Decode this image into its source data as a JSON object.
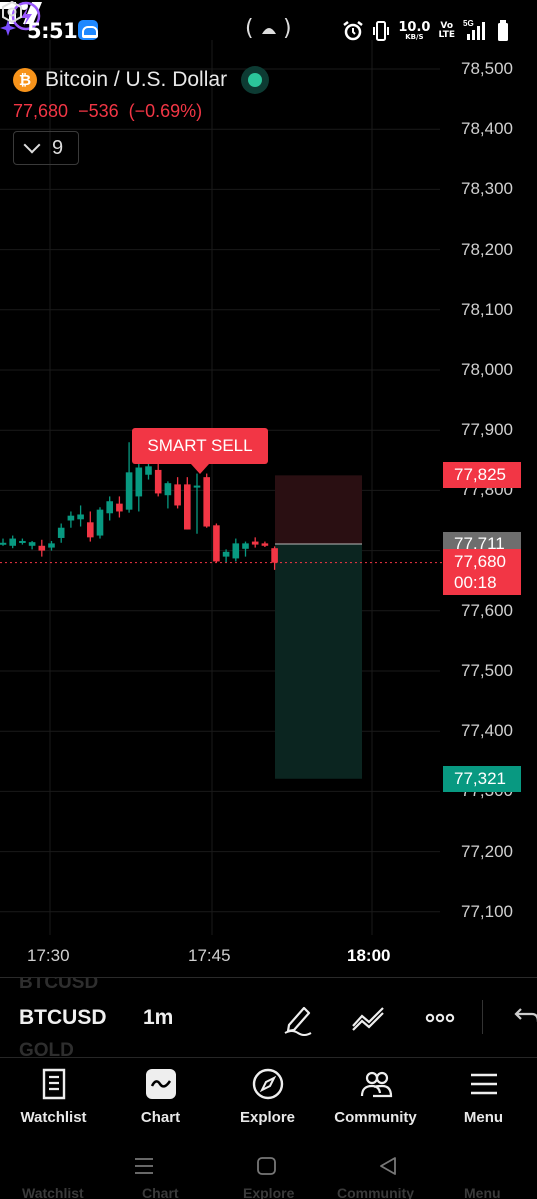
{
  "status_bar": {
    "time": "5:51",
    "speed_value": "10.0",
    "speed_unit": "KB/S",
    "volte_top": "Vo",
    "volte_bottom": "LTE",
    "network": "5G"
  },
  "header": {
    "title": "Bitcoin / U.S. Dollar",
    "price": "77,680",
    "change": "−536",
    "change_percent": "(−0.69%)",
    "indicator_count": "9"
  },
  "chart_data": {
    "type": "candlestick",
    "title": "Bitcoin / U.S. Dollar",
    "interval": "1m",
    "y_ticks": [
      "78,500",
      "78,400",
      "78,300",
      "78,200",
      "78,100",
      "78,000",
      "77,900",
      "77,800",
      "77,700",
      "77,600",
      "77,500",
      "77,400",
      "77,300",
      "77,200",
      "77,100"
    ],
    "x_ticks": [
      "17:30",
      "17:45",
      "18:00"
    ],
    "ylim": [
      77070,
      78530
    ],
    "candles": [
      {
        "o": 77713,
        "h": 77720,
        "l": 77708,
        "c": 77713
      },
      {
        "o": 77708,
        "h": 77725,
        "l": 77704,
        "c": 77720
      },
      {
        "o": 77713,
        "h": 77720,
        "l": 77710,
        "c": 77716
      },
      {
        "o": 77708,
        "h": 77716,
        "l": 77702,
        "c": 77714
      },
      {
        "o": 77708,
        "h": 77718,
        "l": 77690,
        "c": 77700
      },
      {
        "o": 77705,
        "h": 77716,
        "l": 77700,
        "c": 77712
      },
      {
        "o": 77721,
        "h": 77745,
        "l": 77713,
        "c": 77738
      },
      {
        "o": 77750,
        "h": 77765,
        "l": 77738,
        "c": 77758
      },
      {
        "o": 77752,
        "h": 77775,
        "l": 77740,
        "c": 77760
      },
      {
        "o": 77747,
        "h": 77765,
        "l": 77715,
        "c": 77722
      },
      {
        "o": 77725,
        "h": 77772,
        "l": 77720,
        "c": 77768
      },
      {
        "o": 77762,
        "h": 77790,
        "l": 77750,
        "c": 77782
      },
      {
        "o": 77778,
        "h": 77790,
        "l": 77755,
        "c": 77765
      },
      {
        "o": 77768,
        "h": 77880,
        "l": 77763,
        "c": 77830
      },
      {
        "o": 77790,
        "h": 77850,
        "l": 77765,
        "c": 77838
      },
      {
        "o": 77826,
        "h": 77845,
        "l": 77818,
        "c": 77840
      },
      {
        "o": 77834,
        "h": 77855,
        "l": 77790,
        "c": 77795
      },
      {
        "o": 77792,
        "h": 77815,
        "l": 77770,
        "c": 77812
      },
      {
        "o": 77810,
        "h": 77822,
        "l": 77770,
        "c": 77775
      },
      {
        "o": 77810,
        "h": 77822,
        "l": 77735,
        "c": 77735
      },
      {
        "o": 77805,
        "h": 77828,
        "l": 77728,
        "c": 77808
      },
      {
        "o": 77822,
        "h": 77828,
        "l": 77738,
        "c": 77740
      },
      {
        "o": 77742,
        "h": 77745,
        "l": 77680,
        "c": 77682
      },
      {
        "o": 77690,
        "h": 77702,
        "l": 77680,
        "c": 77698
      },
      {
        "o": 77687,
        "h": 77720,
        "l": 77682,
        "c": 77712
      },
      {
        "o": 77703,
        "h": 77715,
        "l": 77690,
        "c": 77712
      },
      {
        "o": 77715,
        "h": 77722,
        "l": 77705,
        "c": 77710
      },
      {
        "o": 77712,
        "h": 77715,
        "l": 77706,
        "c": 77708
      },
      {
        "o": 77704,
        "h": 77707,
        "l": 77668,
        "c": 77680
      }
    ],
    "signal_label": "SMART SELL",
    "stop_level": 77825,
    "entry_level": 77711,
    "target_level": 77321,
    "price_tags": {
      "stop": "77,825",
      "last_close": "77,711",
      "current": "77,680",
      "countdown": "00:18",
      "target": "77,321"
    }
  },
  "symbol_bar": {
    "ghost_top": "BTCUSD",
    "symbol": "BTCUSD",
    "interval": "1m",
    "ghost_bottom": "GOLD"
  },
  "bottom_nav": [
    {
      "label": "Watchlist",
      "icon": "watchlist-icon"
    },
    {
      "label": "Chart",
      "icon": "chart-icon"
    },
    {
      "label": "Explore",
      "icon": "compass-icon"
    },
    {
      "label": "Community",
      "icon": "community-icon"
    },
    {
      "label": "Menu",
      "icon": "menu-icon"
    }
  ],
  "system_nav_ghost": [
    "Watchlist",
    "Chart",
    "Explore",
    "Community",
    "Menu"
  ],
  "colors": {
    "up": "#089981",
    "down": "#f23645",
    "background": "#000000",
    "grid": "#1a1a1a"
  }
}
